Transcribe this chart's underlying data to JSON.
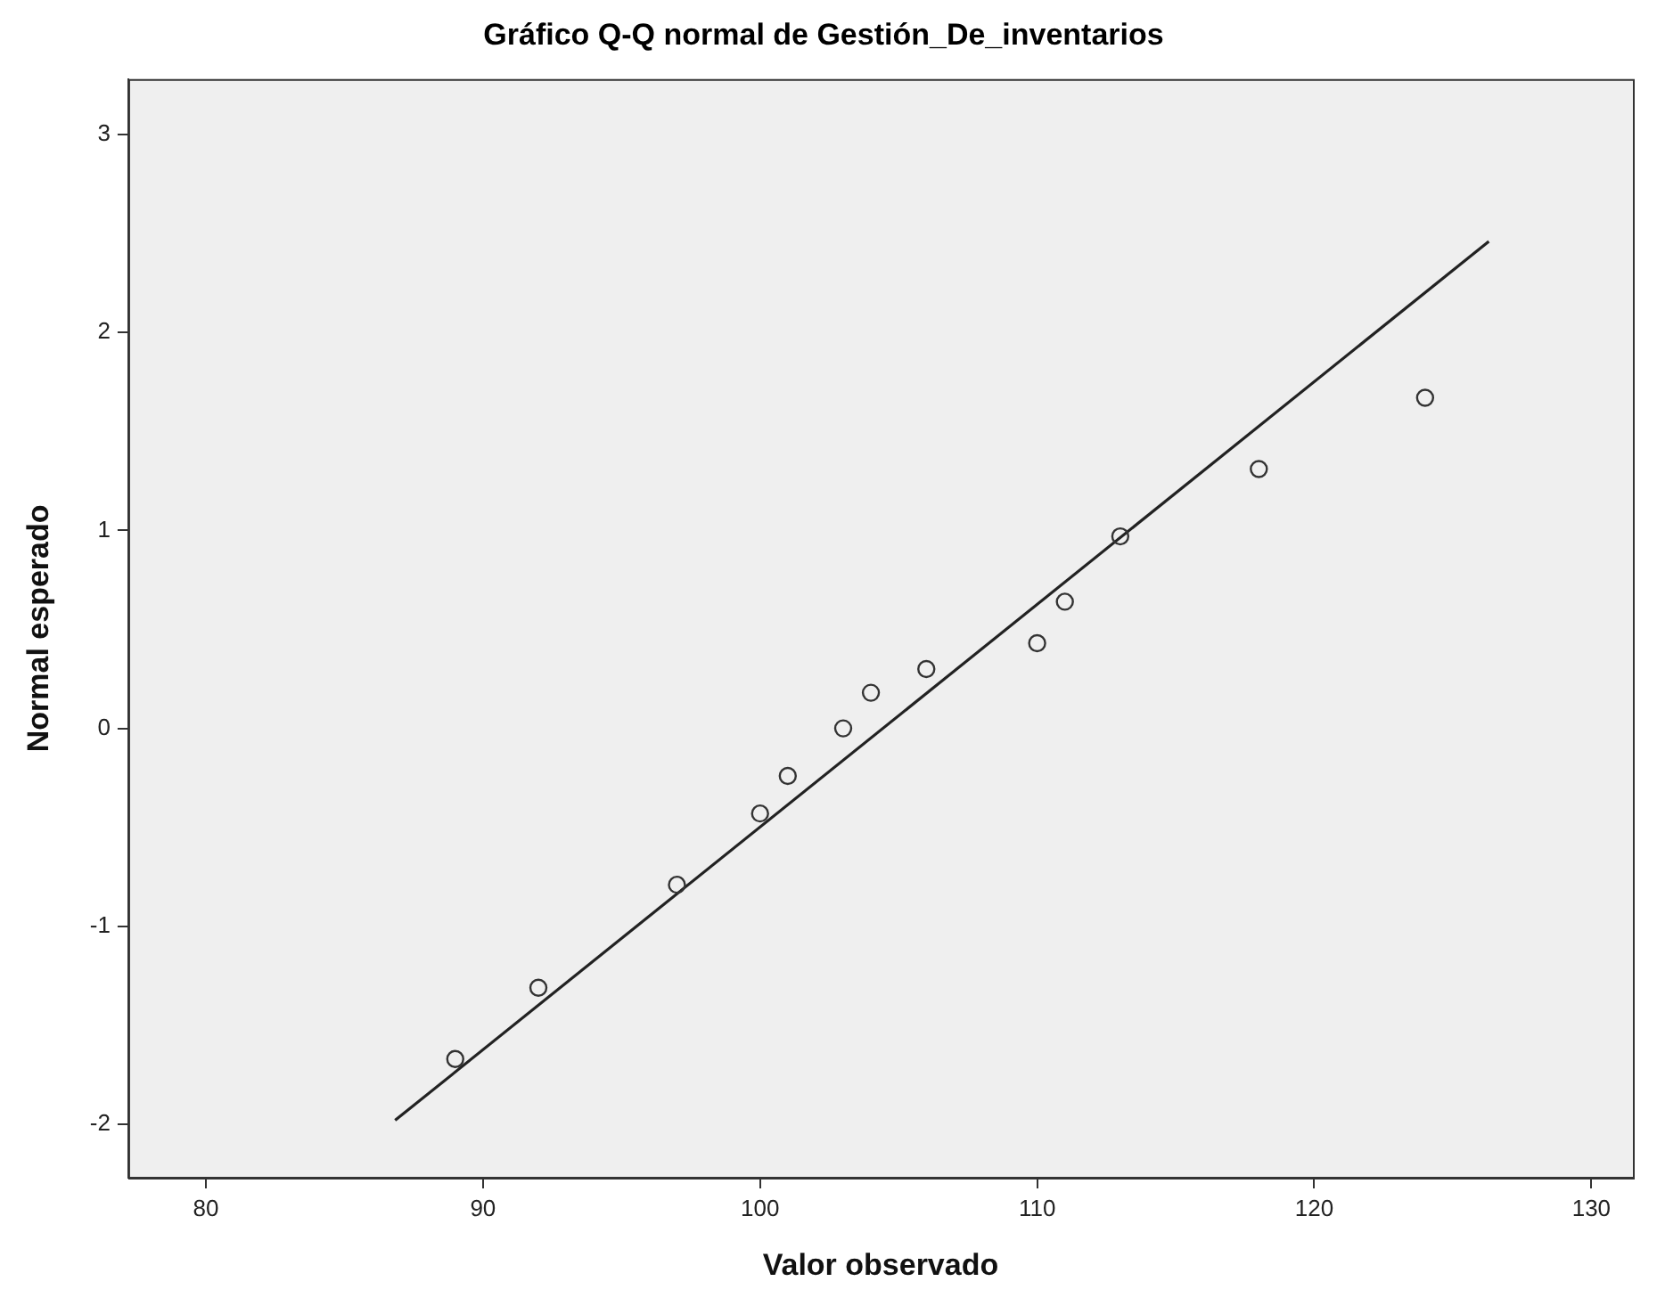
{
  "chart_data": {
    "type": "scatter",
    "title": "Gráfico Q-Q normal de Gestión_De_inventarios",
    "xlabel": "Valor observado",
    "ylabel": "Normal esperado",
    "xlim": [
      77.2,
      131.5
    ],
    "xticks": [
      80,
      90,
      100,
      110,
      120,
      130
    ],
    "ylim": [
      -2.27,
      3.28
    ],
    "yticks": [
      -2,
      -1,
      0,
      1,
      2,
      3
    ],
    "grid": false,
    "legend": false,
    "marker": "circle",
    "series": [
      {
        "color": "#333333",
        "x": [
          89,
          92,
          97,
          100,
          101,
          103,
          104,
          106,
          110,
          111,
          113,
          118,
          124
        ],
        "values": [
          -1.67,
          -1.31,
          -0.79,
          -0.43,
          -0.24,
          0,
          0.18,
          0.3,
          0.43,
          0.64,
          0.97,
          1.31,
          1.67
        ]
      },
      {
        "type": "line",
        "marker": "none",
        "color": "#222222",
        "x": [
          86.83,
          126.3
        ],
        "values": [
          -1.98,
          2.46
        ]
      }
    ]
  }
}
